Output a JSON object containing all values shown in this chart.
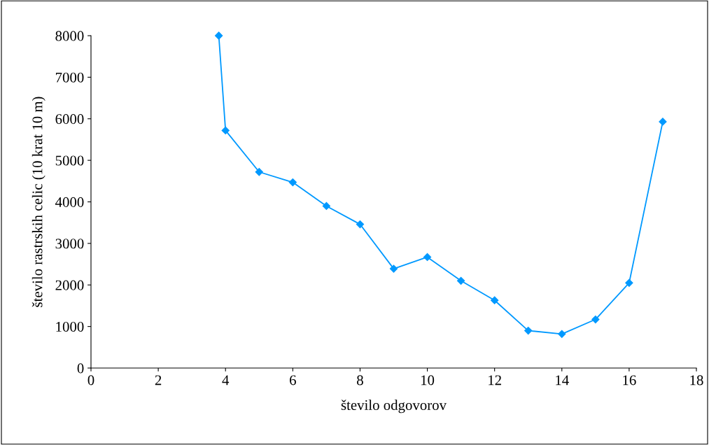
{
  "chart_data": {
    "type": "line",
    "xlabel": "število odgovorov",
    "ylabel": "število rastrskih celic (10 krat 10 m)",
    "x": [
      3.8,
      4,
      5,
      6,
      7,
      8,
      9,
      10,
      11,
      12,
      13,
      14,
      15,
      16,
      17
    ],
    "series": [
      {
        "color": "#0099ff",
        "values": [
          8000,
          5720,
          4720,
          4470,
          3900,
          3460,
          2390,
          2670,
          2100,
          1630,
          900,
          820,
          1170,
          2050,
          5930
        ]
      }
    ],
    "xlim": [
      0,
      18
    ],
    "xticks": [
      0,
      2,
      4,
      6,
      8,
      10,
      12,
      14,
      16,
      18
    ],
    "ylim": [
      0,
      8000
    ],
    "yticks": [
      0,
      1000,
      2000,
      3000,
      4000,
      5000,
      6000,
      7000,
      8000
    ],
    "grid": false,
    "legend": false,
    "marker": "diamond",
    "line_style": "solid"
  }
}
